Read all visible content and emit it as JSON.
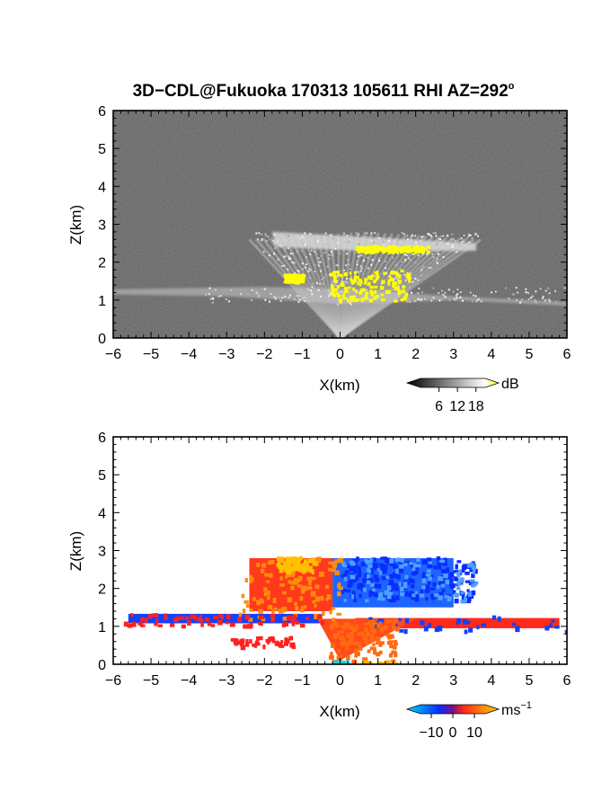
{
  "title": "3D−CDL@Fukuoka 170313 105611 RHI AZ=292",
  "title_degree": "o",
  "chart_data": [
    {
      "type": "heatmap",
      "panel": "reflectivity",
      "xlabel": "X(km)",
      "ylabel": "Z(km)",
      "xlim": [
        -6,
        6
      ],
      "ylim": [
        0,
        6
      ],
      "xticks": [
        -6,
        -5,
        -4,
        -3,
        -2,
        -1,
        0,
        1,
        2,
        3,
        4,
        5,
        6
      ],
      "yticks": [
        0,
        1,
        2,
        3,
        4,
        5,
        6
      ],
      "colorbar": {
        "unit": "dB",
        "ticks": [
          6,
          12,
          18
        ],
        "range": [
          0,
          21
        ],
        "colors": [
          "#000000",
          "#ffffff",
          "#ffff00"
        ]
      },
      "background": "#1b1b1b",
      "features": {
        "lower_layer": {
          "x": [
            -6,
            6
          ],
          "z": [
            1.0,
            1.35
          ]
        },
        "upper_layer": {
          "x": [
            -1.7,
            3.6
          ],
          "z": [
            2.3,
            2.8
          ]
        },
        "yellow_cores": [
          {
            "x": [
              -1.5,
              -1.0
            ],
            "z": [
              1.5,
              1.7
            ]
          },
          {
            "x": [
              -0.3,
              1.8
            ],
            "z": [
              1.0,
              1.8
            ]
          },
          {
            "x": [
              0.4,
              2.3
            ],
            "z": [
              2.3,
              2.45
            ]
          }
        ]
      }
    },
    {
      "type": "heatmap",
      "panel": "doppler_velocity",
      "xlabel": "X(km)",
      "ylabel": "Z(km)",
      "xlim": [
        -6,
        6
      ],
      "ylim": [
        0,
        6
      ],
      "xticks": [
        -6,
        -5,
        -4,
        -3,
        -2,
        -1,
        0,
        1,
        2,
        3,
        4,
        5,
        6
      ],
      "yticks": [
        0,
        1,
        2,
        3,
        4,
        5,
        6
      ],
      "colorbar": {
        "unit": "ms",
        "unit_exponent": "−1",
        "tick_labels": [
          "−10",
          "0",
          "10"
        ],
        "range": [
          -15,
          15
        ],
        "colors": [
          "#00d0ff",
          "#0a2cff",
          "#ff2a1a",
          "#ffd000"
        ]
      },
      "features": {
        "negative_upper": {
          "x": [
            0,
            3.6
          ],
          "z": [
            1.7,
            2.85
          ]
        },
        "positive_upper": {
          "x": [
            -2.7,
            0
          ],
          "z": [
            1.2,
            2.85
          ]
        },
        "negative_left_layer": {
          "x": [
            -5.8,
            -0.5
          ],
          "z": [
            1.05,
            1.35
          ]
        },
        "positive_right_layer": {
          "x": [
            0.5,
            6
          ],
          "z": [
            0.9,
            1.3
          ]
        },
        "positive_cone": {
          "x": [
            -0.3,
            1.5
          ],
          "z": [
            0.1,
            1.2
          ]
        }
      }
    }
  ]
}
